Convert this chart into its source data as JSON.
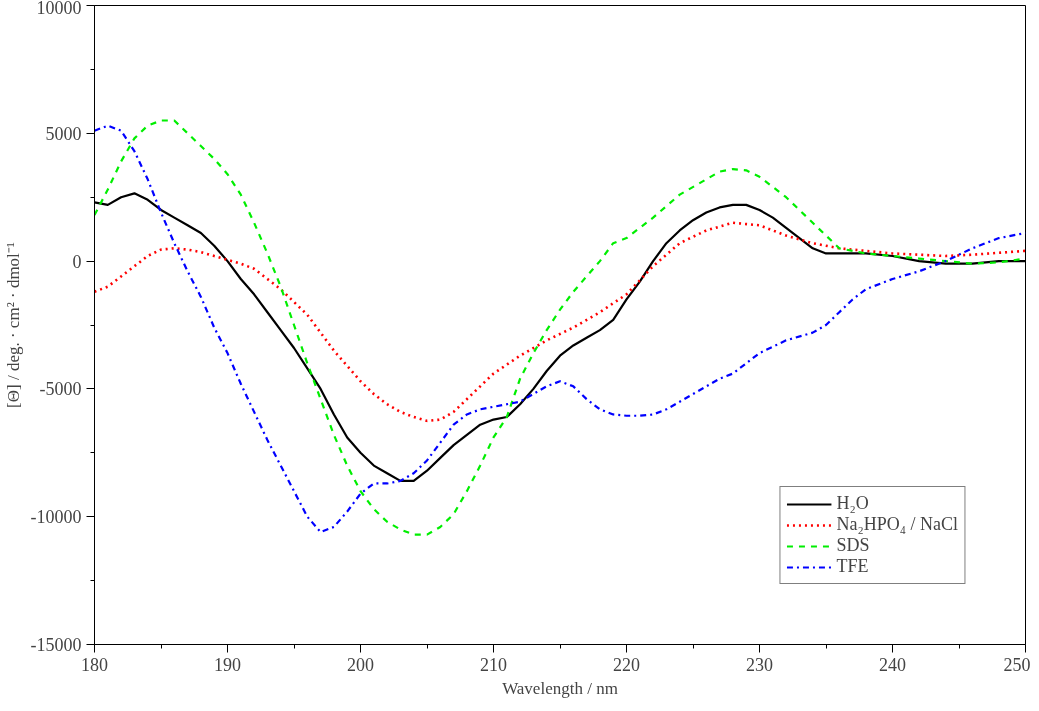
{
  "chart_data": {
    "type": "line",
    "xlabel": "Wavelength / nm",
    "ylabel": "[Θ] / deg. · cm² · dmol⁻¹",
    "xlim": [
      180,
      250
    ],
    "ylim": [
      -15000,
      10000
    ],
    "xticks": [
      180,
      {
        "value": 185,
        "label": null
      },
      190,
      {
        "value": 195,
        "label": null
      },
      200,
      {
        "value": 205,
        "label": null
      },
      210,
      {
        "value": 215,
        "label": null
      },
      220,
      {
        "value": 225,
        "label": null
      },
      230,
      {
        "value": 235,
        "label": null
      },
      240,
      {
        "value": 245,
        "label": null
      },
      250
    ],
    "yticks": [
      -15000,
      {
        "value": -12500,
        "label": null
      },
      -10000,
      {
        "value": -7500,
        "label": null
      },
      -5000,
      {
        "value": -2500,
        "label": null
      },
      0,
      {
        "value": 2500,
        "label": null
      },
      5000,
      {
        "value": 7500,
        "label": null
      },
      10000
    ],
    "grid": false,
    "legend": "bottom right",
    "series": [
      {
        "name": "H₂O",
        "color": "#000000",
        "line_style": "solid",
        "x": [
          180,
          181,
          182,
          183,
          184,
          185,
          186,
          187,
          188,
          189,
          190,
          191,
          192,
          193,
          194,
          195,
          196,
          197,
          198,
          199,
          200,
          201,
          202,
          203,
          204,
          205,
          206,
          207,
          208,
          209,
          210,
          211,
          212,
          213,
          214,
          215,
          216,
          217,
          218,
          219,
          220,
          221,
          222,
          223,
          224,
          225,
          226,
          227,
          228,
          229,
          230,
          231,
          232,
          233,
          234,
          235,
          236,
          238,
          240,
          242,
          244,
          246,
          248,
          250
        ],
        "values": [
          2300,
          2200,
          2500,
          2650,
          2400,
          2000,
          1700,
          1400,
          1100,
          600,
          0,
          -700,
          -1300,
          -2000,
          -2700,
          -3400,
          -4200,
          -5000,
          -6000,
          -6900,
          -7500,
          -8000,
          -8300,
          -8600,
          -8600,
          -8200,
          -7700,
          -7200,
          -6800,
          -6400,
          -6200,
          -6100,
          -5600,
          -5000,
          -4300,
          -3700,
          -3300,
          -3000,
          -2700,
          -2300,
          -1500,
          -800,
          0,
          700,
          1200,
          1600,
          1900,
          2100,
          2200,
          2200,
          2000,
          1700,
          1300,
          900,
          500,
          300,
          300,
          300,
          200,
          0,
          -100,
          -100,
          0,
          0
        ]
      },
      {
        "name": "Na₂HPO₄ / NaCl",
        "color": "#ff0000",
        "line_style": "dotted",
        "x": [
          180,
          181,
          182,
          183,
          184,
          185,
          186,
          187,
          188,
          189,
          190,
          191,
          192,
          193,
          194,
          195,
          196,
          197,
          198,
          199,
          200,
          201,
          202,
          203,
          204,
          205,
          206,
          207,
          208,
          209,
          210,
          212,
          214,
          216,
          218,
          220,
          222,
          224,
          226,
          228,
          230,
          232,
          234,
          236,
          238,
          240,
          244,
          246,
          250
        ],
        "values": [
          -1200,
          -1000,
          -600,
          -200,
          200,
          450,
          500,
          450,
          350,
          200,
          50,
          -100,
          -300,
          -700,
          -1100,
          -1600,
          -2100,
          -2800,
          -3500,
          -4100,
          -4700,
          -5200,
          -5600,
          -5900,
          -6100,
          -6250,
          -6200,
          -5900,
          -5400,
          -4900,
          -4400,
          -3700,
          -3100,
          -2600,
          -2000,
          -1300,
          -200,
          700,
          1200,
          1500,
          1400,
          1000,
          700,
          500,
          400,
          300,
          200,
          250,
          400
        ]
      },
      {
        "name": "SDS",
        "color": "#00ee00",
        "line_style": "dashed",
        "x": [
          180,
          181,
          182,
          183,
          184,
          185,
          186,
          187,
          188,
          189,
          190,
          191,
          192,
          193,
          194,
          195,
          196,
          197,
          198,
          199,
          200,
          201,
          202,
          203,
          204,
          205,
          206,
          207,
          208,
          209,
          210,
          211,
          212,
          213,
          214,
          215,
          216,
          217,
          218,
          219,
          220,
          222,
          224,
          226,
          227,
          228,
          229,
          230,
          232,
          234,
          236,
          238,
          240,
          242,
          244,
          246,
          248,
          250
        ],
        "values": [
          1800,
          2800,
          3900,
          4800,
          5300,
          5500,
          5500,
          5000,
          4500,
          4000,
          3400,
          2600,
          1500,
          300,
          -1000,
          -2500,
          -4000,
          -5400,
          -6800,
          -8000,
          -9000,
          -9700,
          -10200,
          -10500,
          -10700,
          -10700,
          -10400,
          -9900,
          -9000,
          -8000,
          -6900,
          -6100,
          -4600,
          -3600,
          -2700,
          -1900,
          -1200,
          -600,
          0,
          700,
          900,
          1700,
          2600,
          3200,
          3500,
          3600,
          3550,
          3300,
          2500,
          1500,
          500,
          300,
          200,
          100,
          0,
          -100,
          -50,
          100
        ]
      },
      {
        "name": "TFE",
        "color": "#0000ff",
        "line_style": "dashdot",
        "x": [
          180,
          181,
          182,
          183,
          184,
          185,
          186,
          187,
          188,
          189,
          190,
          191,
          192,
          193,
          194,
          195,
          196,
          197,
          198,
          199,
          200,
          201,
          202,
          203,
          204,
          205,
          206,
          207,
          208,
          209,
          210,
          212,
          213,
          214,
          215,
          216,
          217,
          218,
          219,
          220,
          221,
          222,
          223,
          224,
          225,
          226,
          227,
          228,
          229,
          230,
          232,
          234,
          235,
          236,
          237,
          238,
          240,
          242,
          244,
          246,
          248,
          250
        ],
        "values": [
          5100,
          5300,
          5100,
          4300,
          3200,
          1900,
          700,
          -400,
          -1400,
          -2600,
          -3600,
          -4800,
          -5900,
          -7000,
          -8000,
          -9000,
          -10000,
          -10600,
          -10400,
          -9800,
          -9100,
          -8700,
          -8700,
          -8600,
          -8300,
          -7800,
          -7100,
          -6400,
          -6000,
          -5800,
          -5700,
          -5500,
          -5200,
          -4900,
          -4700,
          -4900,
          -5400,
          -5800,
          -6000,
          -6050,
          -6050,
          -6000,
          -5800,
          -5500,
          -5200,
          -4900,
          -4600,
          -4400,
          -4000,
          -3600,
          -3100,
          -2800,
          -2500,
          -2000,
          -1500,
          -1100,
          -700,
          -400,
          0,
          500,
          900,
          1100
        ]
      }
    ]
  }
}
